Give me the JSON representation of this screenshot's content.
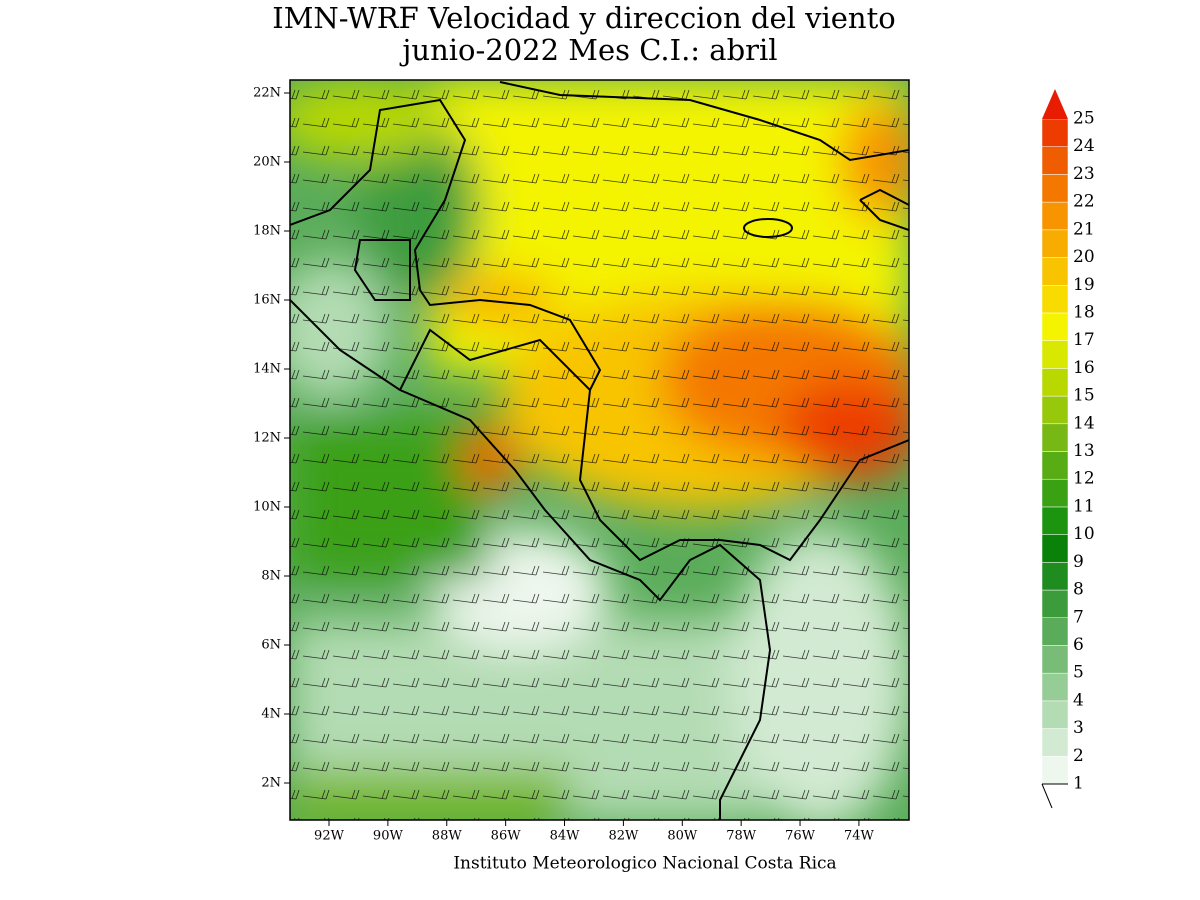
{
  "header": {
    "title": "IMN-WRF Velocidad y direccion del viento",
    "subtitle": "junio-2022 Mes C.I.: abril"
  },
  "map": {
    "lat_ticks": [
      {
        "value": 22,
        "label": "22N"
      },
      {
        "value": 20,
        "label": "20N"
      },
      {
        "value": 18,
        "label": "18N"
      },
      {
        "value": 16,
        "label": "16N"
      },
      {
        "value": 14,
        "label": "14N"
      },
      {
        "value": 12,
        "label": "12N"
      },
      {
        "value": 10,
        "label": "10N"
      },
      {
        "value": 8,
        "label": "8N"
      },
      {
        "value": 6,
        "label": "6N"
      },
      {
        "value": 4,
        "label": "4N"
      },
      {
        "value": 2,
        "label": "2N"
      }
    ],
    "lon_ticks": [
      {
        "value": -92,
        "label": "92W"
      },
      {
        "value": -90,
        "label": "90W"
      },
      {
        "value": -88,
        "label": "88W"
      },
      {
        "value": -86,
        "label": "86W"
      },
      {
        "value": -84,
        "label": "84W"
      },
      {
        "value": -82,
        "label": "82W"
      },
      {
        "value": -80,
        "label": "80W"
      },
      {
        "value": -78,
        "label": "78W"
      },
      {
        "value": -76,
        "label": "76W"
      },
      {
        "value": -74,
        "label": "74W"
      }
    ]
  },
  "colorbar": {
    "levels": [
      1,
      2,
      3,
      4,
      5,
      6,
      7,
      8,
      9,
      10,
      11,
      12,
      13,
      14,
      15,
      16,
      17,
      18,
      19,
      20,
      21,
      22,
      23,
      24,
      25
    ],
    "colors": [
      "#eef7ee",
      "#d2ead2",
      "#b4dcb4",
      "#96cc96",
      "#78bc78",
      "#5aac5a",
      "#3c9c3c",
      "#1e8c1e",
      "#0a820a",
      "#1c9410",
      "#3aa014",
      "#58ac14",
      "#78b814",
      "#98c80a",
      "#b8d800",
      "#d8e800",
      "#f4f400",
      "#f8dc00",
      "#f8c400",
      "#f8ac00",
      "#f89400",
      "#f47800",
      "#f05c00",
      "#ec3c00",
      "#e81c00"
    ]
  },
  "footer": {
    "text": "Instituto Meteorologico Nacional Costa Rica"
  }
}
